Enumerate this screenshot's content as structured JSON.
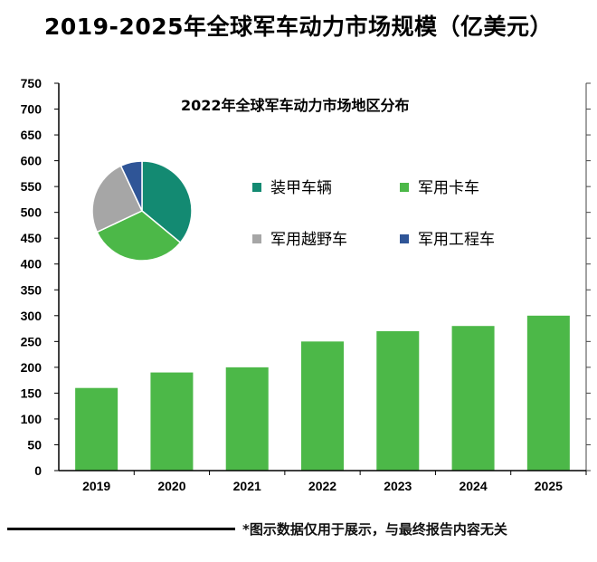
{
  "page": {
    "title": "2019-2025年全球军车动力市场规模（亿美元）",
    "footnote": "*图示数据仅用于展示，与最终报告内容无关"
  },
  "colors": {
    "bar": "#4cb848",
    "axis": "#000000",
    "pie": [
      "#138a72",
      "#4cb848",
      "#a6a6a6",
      "#2f5597"
    ]
  },
  "chart_data": [
    {
      "type": "bar",
      "title": "2019-2025年全球军车动力市场规模（亿美元）",
      "categories": [
        "2019",
        "2020",
        "2021",
        "2022",
        "2023",
        "2024",
        "2025"
      ],
      "values": [
        160,
        190,
        200,
        250,
        270,
        280,
        300
      ],
      "ylim": [
        0,
        750
      ],
      "yticks": [
        0,
        50,
        100,
        150,
        200,
        250,
        300,
        350,
        400,
        450,
        500,
        550,
        600,
        650,
        700,
        750
      ],
      "grid": false
    },
    {
      "type": "pie",
      "title": "2022年全球军车动力市场地区分布",
      "labels": [
        "装甲车辆",
        "军用卡车",
        "军用越野车",
        "军用工程车"
      ],
      "values": [
        36,
        32,
        25,
        7
      ],
      "legend": "right"
    }
  ]
}
